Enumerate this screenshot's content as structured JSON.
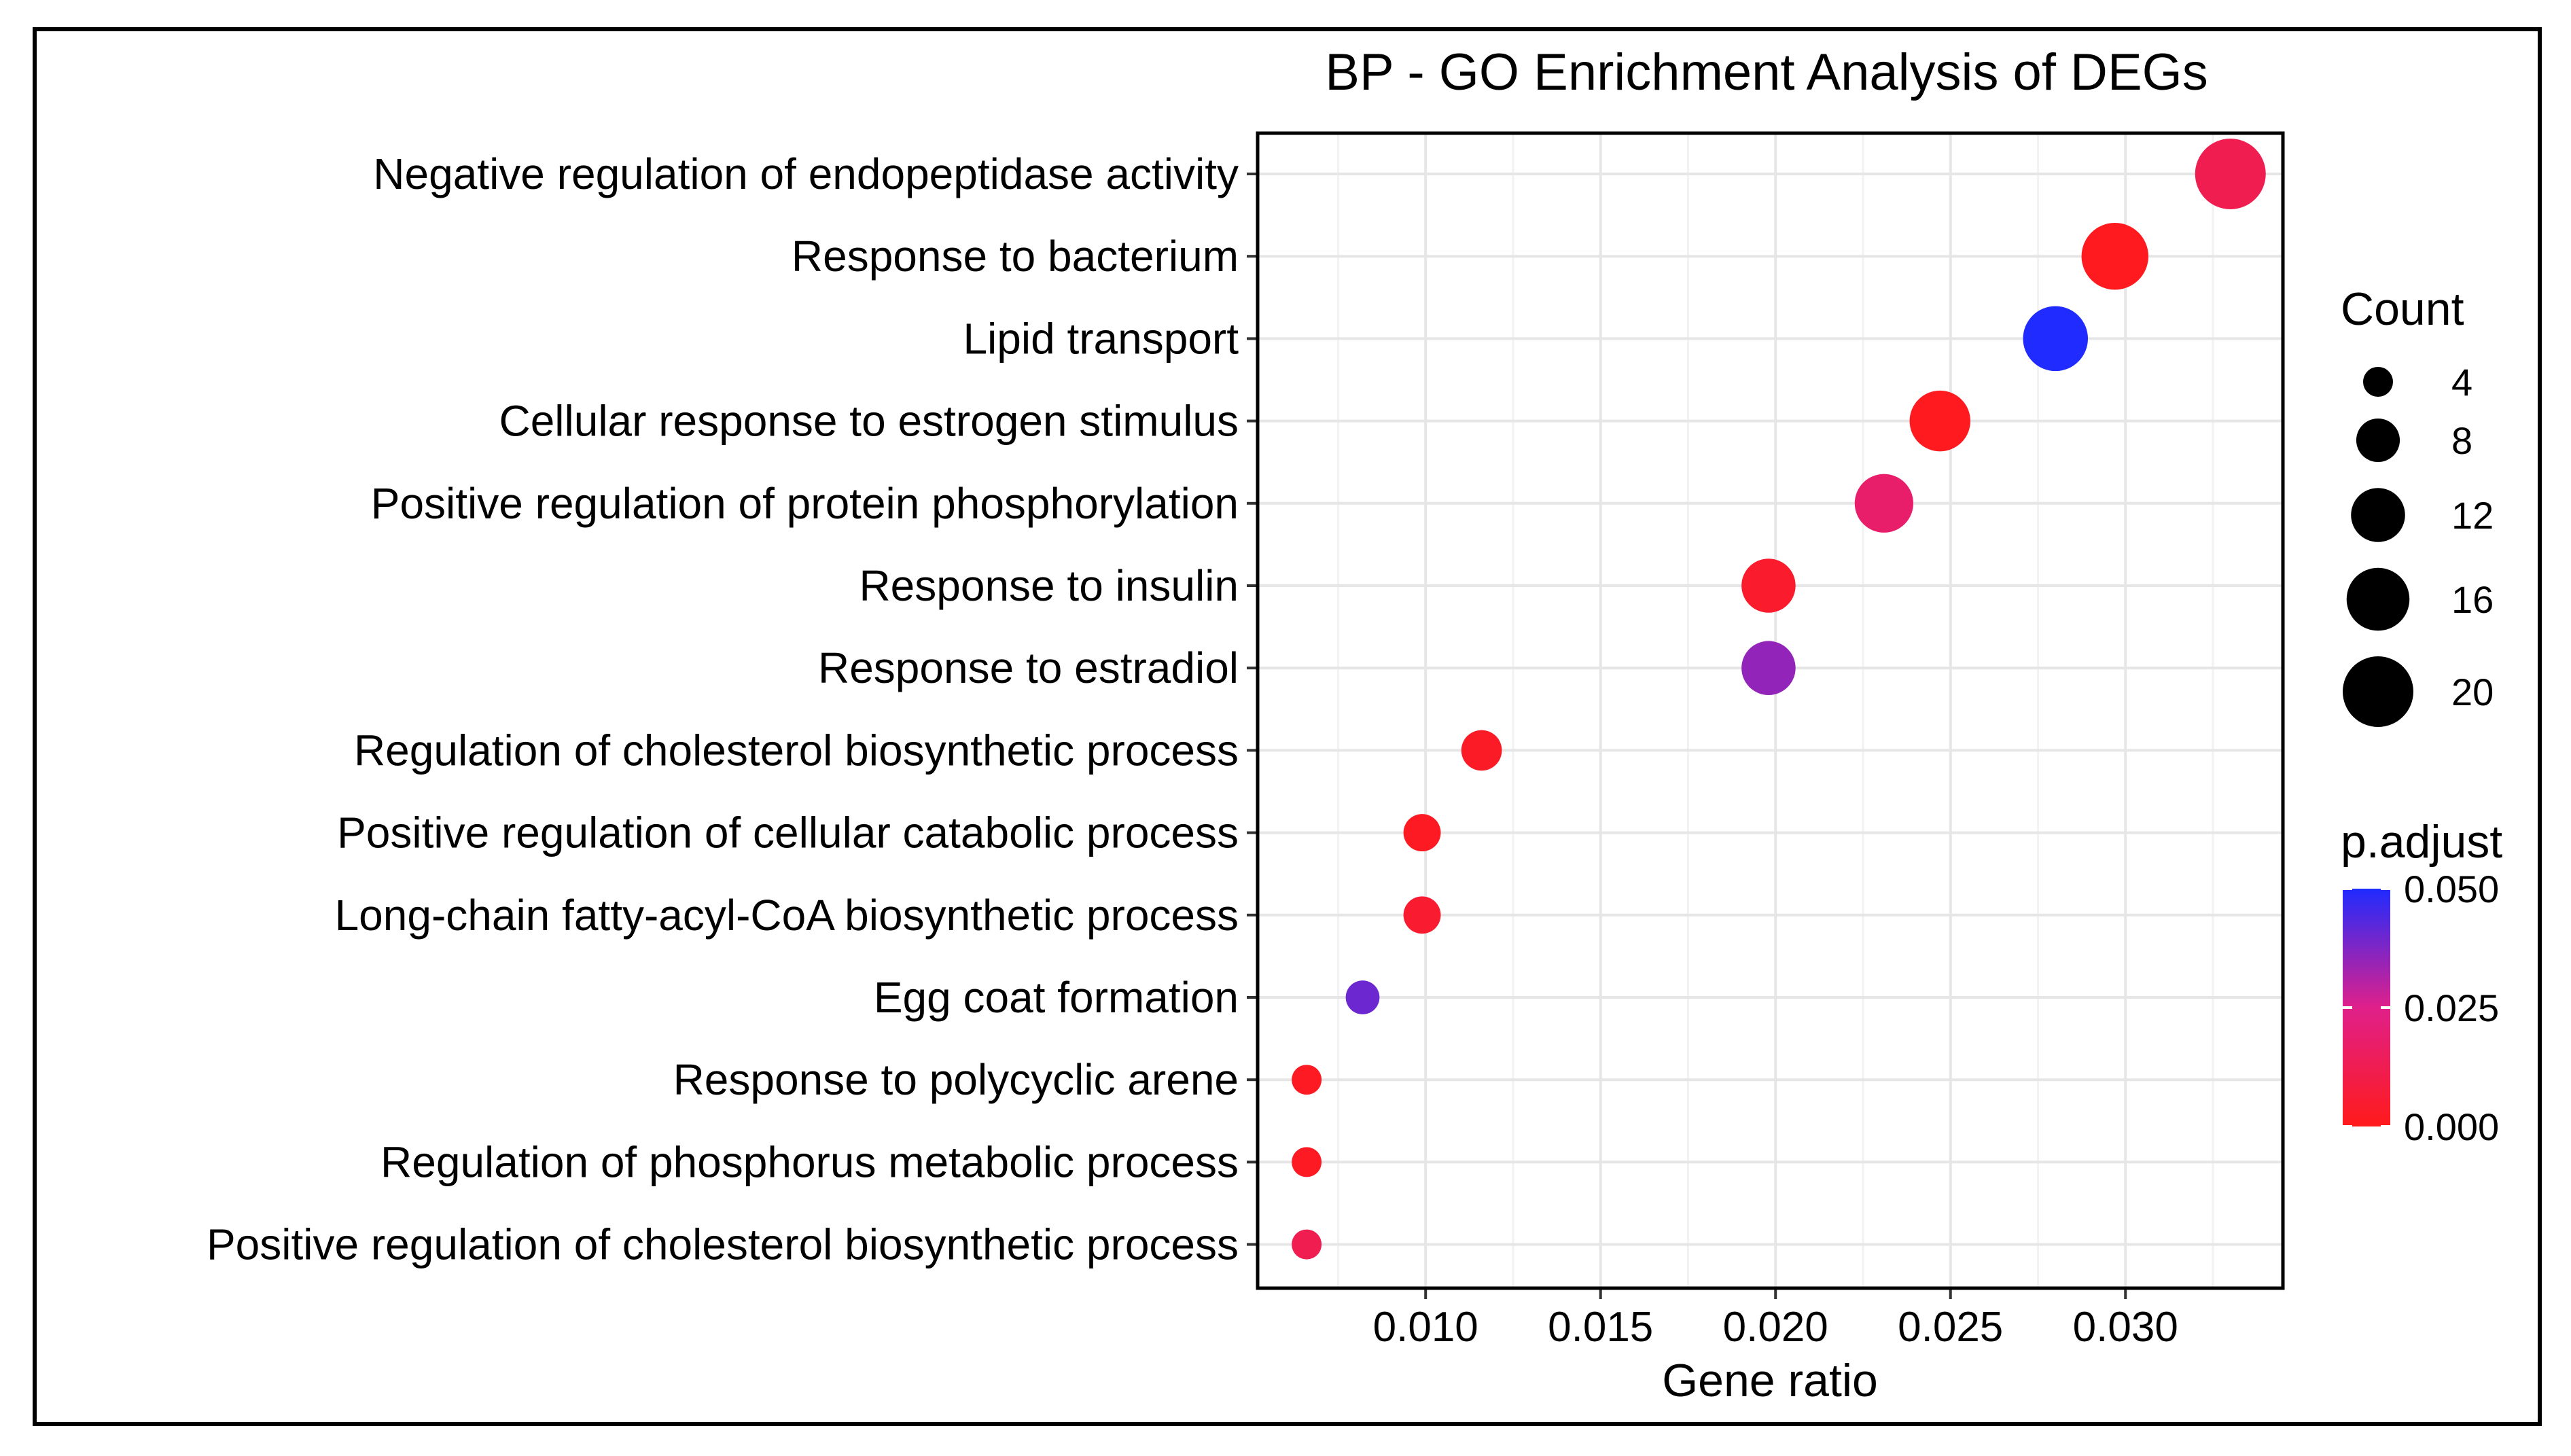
{
  "chart_data": {
    "type": "scatter",
    "subtype": "dot-plot",
    "title": "BP - GO Enrichment Analysis of DEGs",
    "xlabel": "Gene ratio",
    "ylabel": "",
    "xlim": [
      0.0052,
      0.0345
    ],
    "xticks": [
      0.01,
      0.015,
      0.02,
      0.025,
      0.03
    ],
    "xtick_labels": [
      "0.010",
      "0.015",
      "0.020",
      "0.025",
      "0.030"
    ],
    "grid": true,
    "categories": [
      "Negative regulation of endopeptidase activity",
      "Response to bacterium",
      "Lipid transport",
      "Cellular response to estrogen stimulus",
      "Positive regulation of protein phosphorylation",
      "Response to insulin",
      "Response to estradiol",
      "Regulation of cholesterol biosynthetic process",
      "Positive regulation of cellular catabolic process",
      "Long-chain fatty-acyl-CoA biosynthetic process",
      "Egg coat formation",
      "Response to polycyclic arene",
      "Regulation of phosphorus metabolic process",
      "Positive regulation of cholesterol biosynthetic process"
    ],
    "gene_ratio": [
      0.033,
      0.0297,
      0.028,
      0.0247,
      0.0231,
      0.0198,
      0.0198,
      0.0116,
      0.0099,
      0.0099,
      0.0082,
      0.0066,
      0.0066,
      0.0066
    ],
    "count": [
      20,
      18,
      17,
      15,
      14,
      12,
      12,
      7,
      6,
      6,
      5,
      4,
      4,
      4
    ],
    "p_adjust": [
      0.012,
      0.001,
      0.05,
      0.001,
      0.018,
      0.004,
      0.035,
      0.003,
      0.002,
      0.005,
      0.04,
      0.002,
      0.002,
      0.012
    ],
    "size_legend": {
      "title": "Count",
      "values": [
        4,
        8,
        12,
        16,
        20
      ],
      "labels": [
        "4",
        "8",
        "12",
        "16",
        "20"
      ]
    },
    "color_legend": {
      "title": "p.adjust",
      "min": 0.0,
      "max": 0.05,
      "ticks": [
        "0.050",
        "0.025",
        "0.000"
      ],
      "low_color": "#ff1a1a",
      "mid_color": "#e0208a",
      "high_color": "#1f2bff"
    }
  }
}
